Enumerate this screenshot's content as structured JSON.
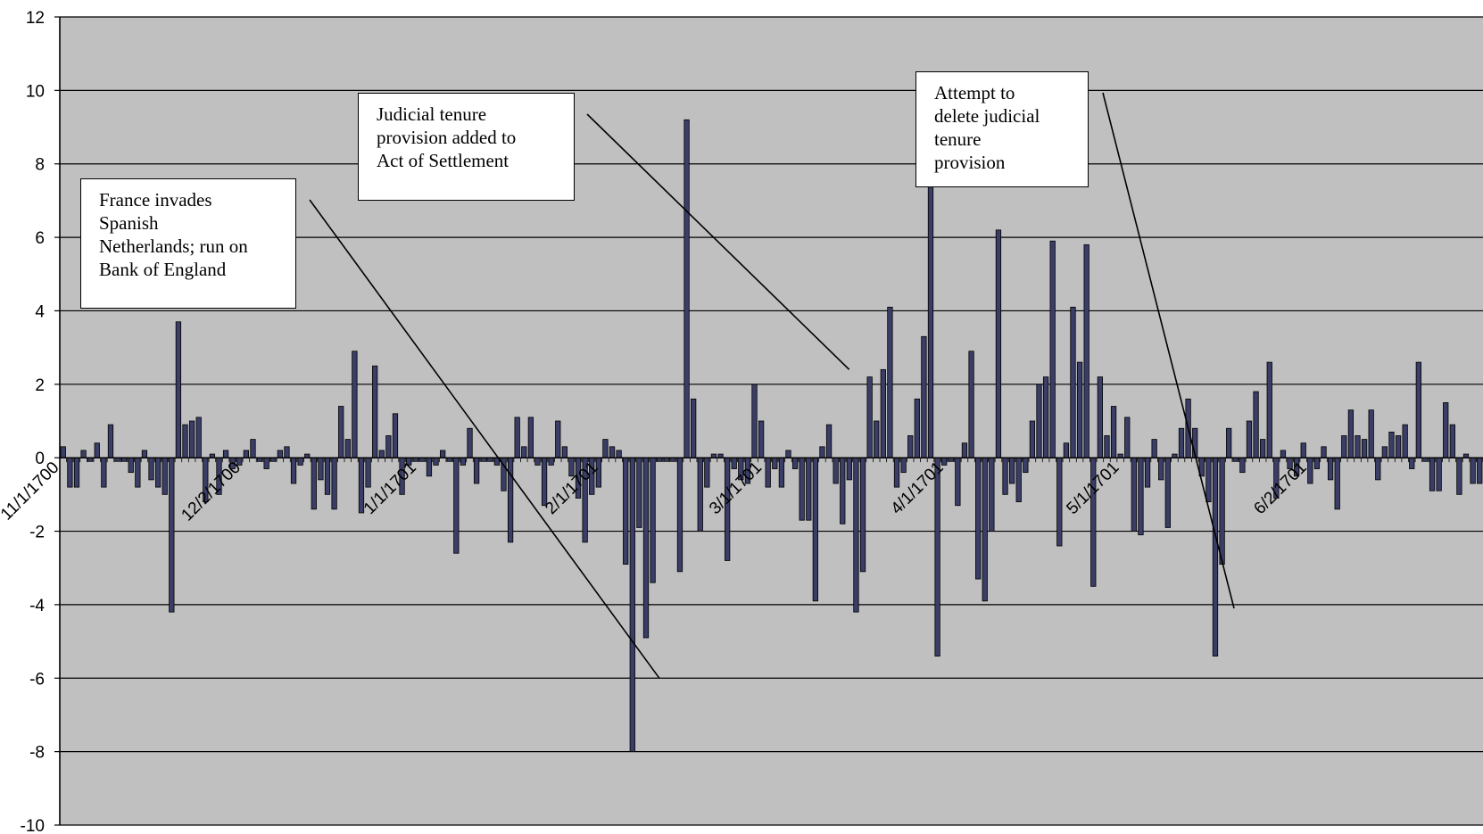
{
  "chart_data": {
    "type": "bar",
    "ylim": [
      -10,
      12
    ],
    "y_ticks": [
      "12",
      "10",
      "8",
      "6",
      "4",
      "2",
      "0",
      "-2",
      "-4",
      "-6",
      "-8",
      "-10"
    ],
    "x_tick_labels": [
      "11/1/1700",
      "12/2/1700",
      "1/1/1701",
      "2/1/1701",
      "3/1/1701",
      "4/1/1701",
      "5/1/1701",
      "6/2/1701"
    ],
    "grid": true,
    "colors": {
      "plot_background": "#c0c0c0",
      "bar_fill": "#3a3d66",
      "gridline": "#000000"
    },
    "values": [
      0.3,
      -0.8,
      -0.8,
      0.2,
      -0.1,
      0.4,
      -0.8,
      0.9,
      -0.1,
      -0.1,
      -0.4,
      -0.8,
      0.2,
      -0.6,
      -0.8,
      -1.0,
      -4.2,
      3.7,
      0.9,
      1.0,
      1.1,
      -1.2,
      0.1,
      -1.0,
      0.2,
      -0.3,
      -0.2,
      0.2,
      0.5,
      -0.1,
      -0.3,
      -0.1,
      0.2,
      0.3,
      -0.7,
      -0.2,
      0.1,
      -1.4,
      -0.6,
      -1.0,
      -1.4,
      1.4,
      0.5,
      2.9,
      -1.5,
      -0.8,
      2.5,
      0.2,
      0.6,
      1.2,
      -1.0,
      -0.2,
      -0.1,
      -0.1,
      -0.5,
      -0.2,
      0.2,
      -0.1,
      -2.6,
      -0.2,
      0.8,
      -0.7,
      -0.1,
      -0.1,
      -0.2,
      -0.9,
      -2.3,
      1.1,
      0.3,
      1.1,
      -0.2,
      -1.3,
      -0.2,
      1.0,
      0.3,
      -0.5,
      -1.1,
      -2.3,
      -1.0,
      -0.8,
      0.5,
      0.3,
      0.2,
      -2.9,
      -8.0,
      -1.9,
      -4.9,
      -3.4,
      -0.1,
      -0.1,
      -0.1,
      -3.1,
      9.2,
      1.6,
      -2.0,
      -0.8,
      0.1,
      0.1,
      -2.8,
      -0.3,
      -0.6,
      -0.7,
      2.0,
      1.0,
      -0.8,
      -0.3,
      -0.8,
      0.2,
      -0.3,
      -1.7,
      -1.7,
      -3.9,
      0.3,
      0.9,
      -0.7,
      -1.8,
      -0.6,
      -4.2,
      -3.1,
      2.2,
      1.0,
      2.4,
      4.1,
      -0.8,
      -0.4,
      0.6,
      1.6,
      3.3,
      9.8,
      -5.4,
      -0.2,
      -0.1,
      -1.3,
      0.4,
      2.9,
      -3.3,
      -3.9,
      -2.0,
      6.2,
      -1.0,
      -0.7,
      -1.2,
      -0.4,
      1.0,
      2.0,
      2.2,
      5.9,
      -2.4,
      0.4,
      4.1,
      2.6,
      5.8,
      -3.5,
      2.2,
      0.6,
      1.4,
      0.1,
      1.1,
      -2.0,
      -2.1,
      -0.8,
      0.5,
      -0.6,
      -1.9,
      0.1,
      0.8,
      1.6,
      0.8,
      -0.5,
      -1.2,
      -5.4,
      -2.9,
      0.8,
      -0.1,
      -0.4,
      1.0,
      1.8,
      0.5,
      2.6,
      -1.1,
      0.2,
      -0.3,
      -0.5,
      0.4,
      -0.7,
      -0.3,
      0.3,
      -0.6,
      -1.4,
      0.6,
      1.3,
      0.6,
      0.5,
      1.3,
      -0.6,
      0.3,
      0.7,
      0.6,
      0.9,
      -0.3,
      2.6,
      -0.1,
      -0.9,
      -0.9,
      1.5,
      0.9,
      -1.0,
      0.1,
      -0.7,
      -0.7
    ]
  },
  "annotations": [
    {
      "text": "France invades\nSpanish\nNetherlands; run on\nBank of England",
      "target_date": "2/1/1701",
      "target_value": -6
    },
    {
      "text": "Judicial tenure\nprovision added to\nAct of Settlement",
      "target_date": "3/1/1701",
      "target_value": 2.4
    },
    {
      "text": "Attempt to\ndelete judicial\ntenure\nprovision",
      "target_date": "5/1/1701",
      "target_value": -4.1
    }
  ]
}
